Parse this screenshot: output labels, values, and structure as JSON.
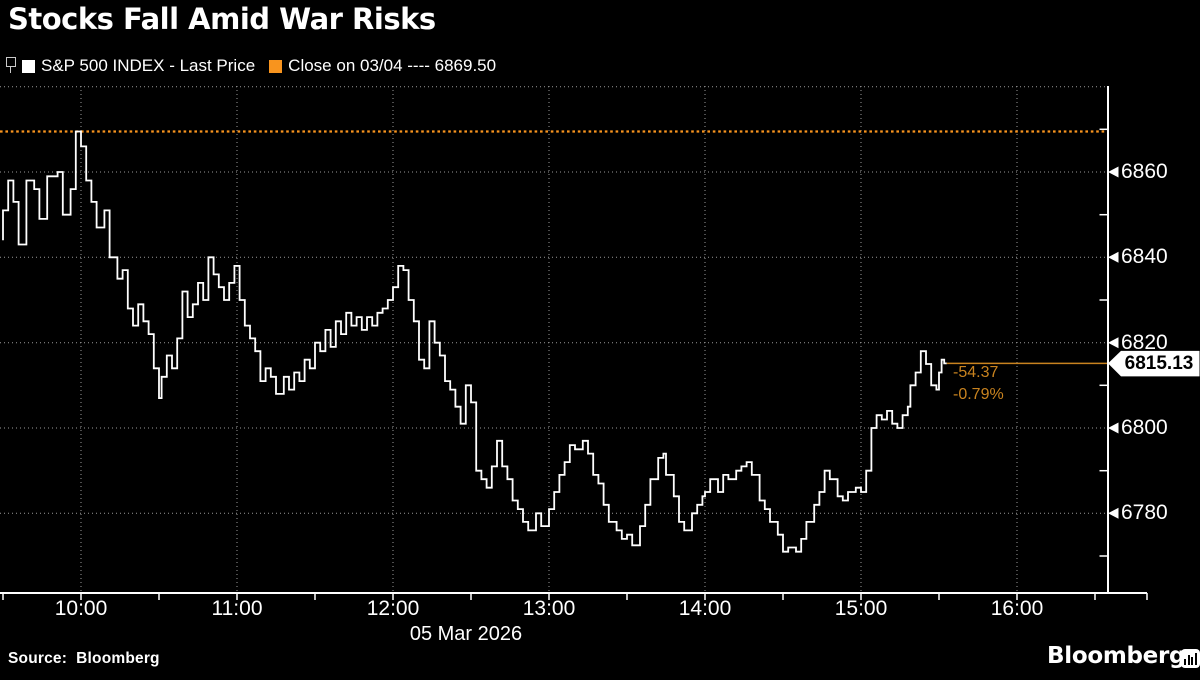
{
  "header": {
    "title": "Stocks Fall Amid War Risks"
  },
  "legend": {
    "series": {
      "label": "S&P 500 INDEX - Last Price",
      "swatch_color": "#FFFFFF"
    },
    "reference": {
      "label": "Close on 03/04 ---- 6869.50",
      "swatch_color": "#F8941E"
    }
  },
  "colors": {
    "background": "#000000",
    "foreground": "#FFFFFF",
    "orange_bright": "#F8941E",
    "orange_dim": "#C9831F",
    "grid": "#9A9A9A"
  },
  "chart_data": {
    "type": "line",
    "title": "Stocks Fall Amid War Risks",
    "series_name": "S&P 500 INDEX - Last Price",
    "x_axis": {
      "date_label": "05 Mar 2026",
      "tick_labels": [
        "10:00",
        "11:00",
        "12:00",
        "13:00",
        "14:00",
        "15:00",
        "16:00"
      ],
      "range": [
        "09:30",
        "16:35"
      ],
      "minor_tick_interval_minutes": 30
    },
    "y_axis": {
      "position": "right",
      "tick_labels": [
        6860,
        6840,
        6820,
        6800,
        6780
      ],
      "minor_ticks": [
        6870,
        6850,
        6830,
        6810,
        6790,
        6770
      ],
      "grid_values": [
        6880,
        6860,
        6840,
        6820,
        6800,
        6780
      ],
      "range": [
        6761,
        6880
      ]
    },
    "grid": true,
    "reference_line": {
      "label": "Close on 03/04",
      "value": 6869.5,
      "style": "dashed"
    },
    "last": {
      "price": "6815.13",
      "net_change": "-54.37",
      "pct_change": "-0.79%",
      "time": "15:33"
    },
    "points": [
      [
        "09:30",
        6844
      ],
      [
        "09:32",
        6851
      ],
      [
        "09:34",
        6858
      ],
      [
        "09:36",
        6853
      ],
      [
        "09:39",
        6843
      ],
      [
        "09:42",
        6858
      ],
      [
        "09:44",
        6856
      ],
      [
        "09:47",
        6849
      ],
      [
        "09:51",
        6859
      ],
      [
        "09:53",
        6860
      ],
      [
        "09:56",
        6850
      ],
      [
        "09:58",
        6856
      ],
      [
        "10:00",
        6869.5
      ],
      [
        "10:02",
        6866
      ],
      [
        "10:04",
        6858
      ],
      [
        "10:06",
        6853
      ],
      [
        "10:09",
        6847
      ],
      [
        "10:11",
        6851
      ],
      [
        "10:14",
        6840
      ],
      [
        "10:16",
        6835
      ],
      [
        "10:18",
        6837
      ],
      [
        "10:20",
        6828
      ],
      [
        "10:22",
        6824
      ],
      [
        "10:24",
        6829
      ],
      [
        "10:26",
        6825
      ],
      [
        "10:28",
        6822
      ],
      [
        "10:30",
        6814
      ],
      [
        "10:31",
        6807
      ],
      [
        "10:33",
        6812
      ],
      [
        "10:35",
        6817
      ],
      [
        "10:37",
        6814
      ],
      [
        "10:39",
        6821
      ],
      [
        "10:41",
        6832
      ],
      [
        "10:43",
        6826
      ],
      [
        "10:45",
        6829
      ],
      [
        "10:47",
        6834
      ],
      [
        "10:49",
        6830
      ],
      [
        "10:51",
        6840
      ],
      [
        "10:53",
        6836
      ],
      [
        "10:55",
        6833
      ],
      [
        "10:57",
        6830
      ],
      [
        "10:59",
        6834
      ],
      [
        "11:01",
        6838
      ],
      [
        "11:03",
        6830
      ],
      [
        "11:05",
        6824
      ],
      [
        "11:07",
        6821
      ],
      [
        "11:09",
        6818
      ],
      [
        "11:11",
        6811
      ],
      [
        "11:13",
        6814
      ],
      [
        "11:15",
        6812
      ],
      [
        "11:18",
        6808
      ],
      [
        "11:20",
        6812
      ],
      [
        "11:22",
        6809
      ],
      [
        "11:24",
        6813
      ],
      [
        "11:26",
        6811
      ],
      [
        "11:28",
        6816
      ],
      [
        "11:30",
        6814
      ],
      [
        "11:32",
        6820
      ],
      [
        "11:34",
        6818
      ],
      [
        "11:36",
        6823
      ],
      [
        "11:38",
        6819
      ],
      [
        "11:40",
        6825
      ],
      [
        "11:42",
        6822
      ],
      [
        "11:44",
        6827
      ],
      [
        "11:46",
        6824
      ],
      [
        "11:48",
        6826
      ],
      [
        "11:50",
        6823
      ],
      [
        "11:52",
        6826
      ],
      [
        "11:54",
        6824
      ],
      [
        "11:56",
        6827
      ],
      [
        "11:58",
        6828
      ],
      [
        "12:00",
        6830
      ],
      [
        "12:02",
        6833
      ],
      [
        "12:04",
        6838
      ],
      [
        "12:06",
        6837
      ],
      [
        "12:08",
        6830
      ],
      [
        "12:10",
        6825
      ],
      [
        "12:12",
        6816
      ],
      [
        "12:14",
        6814
      ],
      [
        "12:16",
        6825
      ],
      [
        "12:18",
        6820
      ],
      [
        "12:20",
        6817
      ],
      [
        "12:22",
        6811
      ],
      [
        "12:24",
        6809
      ],
      [
        "12:26",
        6805
      ],
      [
        "12:28",
        6801
      ],
      [
        "12:30",
        6810
      ],
      [
        "12:32",
        6806
      ],
      [
        "12:34",
        6790
      ],
      [
        "12:36",
        6788
      ],
      [
        "12:38",
        6786
      ],
      [
        "12:40",
        6791
      ],
      [
        "12:42",
        6797
      ],
      [
        "12:44",
        6791
      ],
      [
        "12:46",
        6788
      ],
      [
        "12:48",
        6783
      ],
      [
        "12:50",
        6781
      ],
      [
        "12:52",
        6778
      ],
      [
        "12:55",
        6776
      ],
      [
        "12:57",
        6780
      ],
      [
        "13:00",
        6777
      ],
      [
        "13:02",
        6781
      ],
      [
        "13:04",
        6785
      ],
      [
        "13:06",
        6789
      ],
      [
        "13:08",
        6792
      ],
      [
        "13:10",
        6796
      ],
      [
        "13:13",
        6795
      ],
      [
        "13:15",
        6797
      ],
      [
        "13:17",
        6794
      ],
      [
        "13:19",
        6789
      ],
      [
        "13:21",
        6787
      ],
      [
        "13:23",
        6782
      ],
      [
        "13:26",
        6778
      ],
      [
        "13:28",
        6776
      ],
      [
        "13:30",
        6774
      ],
      [
        "13:32",
        6775
      ],
      [
        "13:35",
        6772.5
      ],
      [
        "13:37",
        6777
      ],
      [
        "13:39",
        6782
      ],
      [
        "13:42",
        6788
      ],
      [
        "13:44",
        6793
      ],
      [
        "13:45",
        6794
      ],
      [
        "13:48",
        6789
      ],
      [
        "13:50",
        6784
      ],
      [
        "13:52",
        6778
      ],
      [
        "13:55",
        6776
      ],
      [
        "13:57",
        6780
      ],
      [
        "13:59",
        6782
      ],
      [
        "14:00",
        6784
      ],
      [
        "14:02",
        6785
      ],
      [
        "14:05",
        6788
      ],
      [
        "14:07",
        6785
      ],
      [
        "14:09",
        6789
      ],
      [
        "14:12",
        6788
      ],
      [
        "14:14",
        6790
      ],
      [
        "14:16",
        6791
      ],
      [
        "14:18",
        6792
      ],
      [
        "14:21",
        6789
      ],
      [
        "14:23",
        6783
      ],
      [
        "14:25",
        6781
      ],
      [
        "14:28",
        6778
      ],
      [
        "14:30",
        6775
      ],
      [
        "14:32",
        6771
      ],
      [
        "14:35",
        6772
      ],
      [
        "14:37",
        6771
      ],
      [
        "14:39",
        6774
      ],
      [
        "14:42",
        6778
      ],
      [
        "14:44",
        6782
      ],
      [
        "14:46",
        6785
      ],
      [
        "14:48",
        6790
      ],
      [
        "14:51",
        6788
      ],
      [
        "14:53",
        6784
      ],
      [
        "14:55",
        6783
      ],
      [
        "14:58",
        6785
      ],
      [
        "15:00",
        6786
      ],
      [
        "15:02",
        6785
      ],
      [
        "15:04",
        6790
      ],
      [
        "15:06",
        6800
      ],
      [
        "15:08",
        6803
      ],
      [
        "15:10",
        6802
      ],
      [
        "15:12",
        6804
      ],
      [
        "15:14",
        6801
      ],
      [
        "15:16",
        6800
      ],
      [
        "15:18",
        6803
      ],
      [
        "15:19",
        6805
      ],
      [
        "15:21",
        6810
      ],
      [
        "15:23",
        6813
      ],
      [
        "15:25",
        6818
      ],
      [
        "15:27",
        6815
      ],
      [
        "15:29",
        6810
      ],
      [
        "15:30",
        6809
      ],
      [
        "15:31",
        6813
      ],
      [
        "15:32",
        6816
      ],
      [
        "15:33",
        6815.13
      ]
    ]
  },
  "footer": {
    "source": "Source:  Bloomberg",
    "logo_text": "Bloomberg"
  }
}
